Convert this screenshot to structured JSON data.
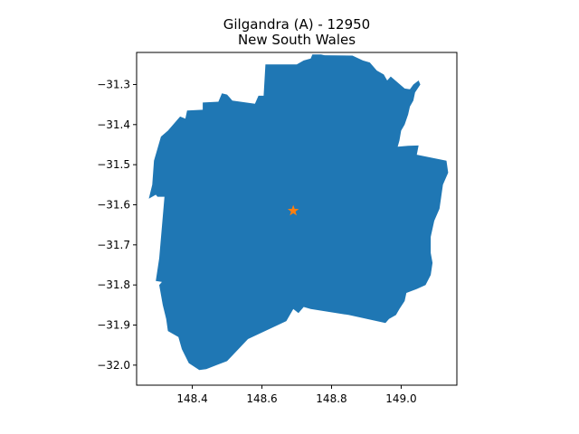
{
  "title": {
    "line1": "Gilgandra (A) - 12950",
    "line2": "New South Wales"
  },
  "colors": {
    "region_fill": "#1f77b4",
    "marker": "#ff7f0e",
    "axes": "#000000",
    "background": "#ffffff"
  },
  "map": {
    "xlim": [
      148.24,
      149.16
    ],
    "ylim": [
      -32.05,
      -31.22
    ],
    "x_ticks": [
      148.4,
      148.6,
      148.8,
      149.0
    ],
    "x_tick_labels": [
      "148.4",
      "148.6",
      "148.8",
      "149.0"
    ],
    "y_ticks": [
      -31.3,
      -31.4,
      -31.5,
      -31.6,
      -31.7,
      -31.8,
      -31.9,
      -32.0
    ],
    "y_tick_labels": [
      "−31.3",
      "−31.4",
      "−31.5",
      "−31.6",
      "−31.7",
      "−31.8",
      "−31.9",
      "−32.0"
    ],
    "centroid_marker": {
      "lon": 148.69,
      "lat": -31.615,
      "symbol": "star"
    },
    "boundary": [
      [
        148.365,
        -31.38
      ],
      [
        148.38,
        -31.385
      ],
      [
        148.385,
        -31.365
      ],
      [
        148.43,
        -31.363
      ],
      [
        148.43,
        -31.345
      ],
      [
        148.475,
        -31.343
      ],
      [
        148.485,
        -31.322
      ],
      [
        148.5,
        -31.325
      ],
      [
        148.515,
        -31.34
      ],
      [
        148.58,
        -31.348
      ],
      [
        148.59,
        -31.328
      ],
      [
        148.605,
        -31.328
      ],
      [
        148.61,
        -31.25
      ],
      [
        148.7,
        -31.25
      ],
      [
        148.72,
        -31.24
      ],
      [
        148.74,
        -31.235
      ],
      [
        148.745,
        -31.225
      ],
      [
        148.77,
        -31.225
      ],
      [
        148.78,
        -31.227
      ],
      [
        148.86,
        -31.228
      ],
      [
        148.89,
        -31.24
      ],
      [
        148.91,
        -31.245
      ],
      [
        148.93,
        -31.265
      ],
      [
        148.95,
        -31.275
      ],
      [
        148.96,
        -31.29
      ],
      [
        148.97,
        -31.28
      ],
      [
        148.99,
        -31.295
      ],
      [
        149.01,
        -31.31
      ],
      [
        149.025,
        -31.312
      ],
      [
        149.035,
        -31.3
      ],
      [
        149.05,
        -31.29
      ],
      [
        149.055,
        -31.3
      ],
      [
        149.04,
        -31.32
      ],
      [
        149.035,
        -31.34
      ],
      [
        149.025,
        -31.355
      ],
      [
        149.02,
        -31.375
      ],
      [
        149.01,
        -31.4
      ],
      [
        149.0,
        -31.415
      ],
      [
        148.995,
        -31.44
      ],
      [
        148.99,
        -31.455
      ],
      [
        149.02,
        -31.453
      ],
      [
        149.05,
        -31.452
      ],
      [
        149.045,
        -31.475
      ],
      [
        149.13,
        -31.49
      ],
      [
        149.135,
        -31.52
      ],
      [
        149.12,
        -31.55
      ],
      [
        149.115,
        -31.58
      ],
      [
        149.11,
        -31.61
      ],
      [
        149.095,
        -31.64
      ],
      [
        149.085,
        -31.68
      ],
      [
        149.085,
        -31.72
      ],
      [
        149.09,
        -31.745
      ],
      [
        149.085,
        -31.775
      ],
      [
        149.07,
        -31.8
      ],
      [
        149.045,
        -31.81
      ],
      [
        149.015,
        -31.82
      ],
      [
        149.01,
        -31.84
      ],
      [
        148.995,
        -31.86
      ],
      [
        148.985,
        -31.875
      ],
      [
        148.965,
        -31.885
      ],
      [
        148.955,
        -31.895
      ],
      [
        148.85,
        -31.875
      ],
      [
        148.74,
        -31.86
      ],
      [
        148.72,
        -31.855
      ],
      [
        148.705,
        -31.87
      ],
      [
        148.69,
        -31.86
      ],
      [
        148.67,
        -31.89
      ],
      [
        148.56,
        -31.935
      ],
      [
        148.5,
        -31.99
      ],
      [
        148.47,
        -32.0
      ],
      [
        148.44,
        -32.01
      ],
      [
        148.42,
        -32.012
      ],
      [
        148.39,
        -31.995
      ],
      [
        148.37,
        -31.96
      ],
      [
        148.36,
        -31.93
      ],
      [
        148.33,
        -31.915
      ],
      [
        148.325,
        -31.885
      ],
      [
        148.315,
        -31.85
      ],
      [
        148.305,
        -31.8
      ],
      [
        148.315,
        -31.79
      ],
      [
        148.33,
        -31.795
      ],
      [
        148.295,
        -31.79
      ],
      [
        148.305,
        -31.733
      ],
      [
        148.32,
        -31.58
      ],
      [
        148.3,
        -31.58
      ],
      [
        148.295,
        -31.575
      ],
      [
        148.275,
        -31.585
      ],
      [
        148.285,
        -31.55
      ],
      [
        148.29,
        -31.49
      ],
      [
        148.31,
        -31.43
      ],
      [
        148.33,
        -31.415
      ],
      [
        148.355,
        -31.39
      ]
    ]
  }
}
